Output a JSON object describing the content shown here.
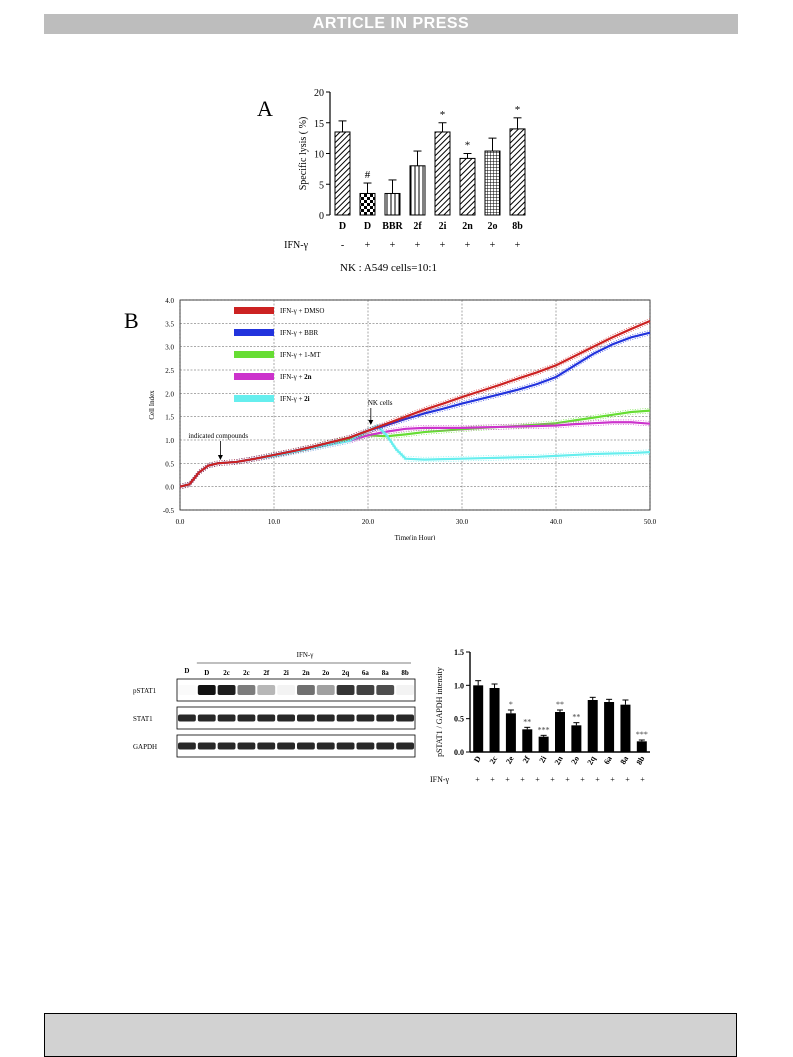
{
  "header": {
    "banner": "ARTICLE IN PRESS"
  },
  "panelA": {
    "letter": "A",
    "caption": "NK : A549 cells=10:1",
    "treatment_label": "IFN-γ",
    "signs": [
      "-",
      "+",
      "+",
      "+",
      "+",
      "+",
      "+",
      "+"
    ],
    "colors": {
      "bar_fill": "#ffffff",
      "stroke": "#000000",
      "dark_fill": "#222222"
    }
  },
  "panelB": {
    "letter": "B",
    "annotations": {
      "compounds": "indicated compounds",
      "nk": "NK cells"
    },
    "colors": {
      "dmso": "#cc2222",
      "bbr": "#2233dd",
      "mt": "#66dd33",
      "n2n": "#cc33cc",
      "n2i": "#66eeee"
    }
  },
  "panelC": {
    "blot": {
      "group_label": "IFN-γ",
      "lanes": [
        "D",
        "D",
        "2c",
        "2c",
        "2f",
        "2i",
        "2n",
        "2o",
        "2q",
        "6a",
        "8a",
        "8b"
      ],
      "rows": [
        "pSTAT1",
        "STAT1",
        "GAPDH"
      ],
      "pstat1_intensity": [
        0.02,
        1.0,
        0.95,
        0.55,
        0.3,
        0.05,
        0.6,
        0.4,
        0.85,
        0.8,
        0.75,
        0.05
      ]
    },
    "treatment_label": "IFN-γ",
    "signs": [
      "+",
      "+",
      "+",
      "+",
      "+",
      "+",
      "+",
      "+",
      "+",
      "+",
      "+",
      "+"
    ]
  },
  "chart_data": [
    {
      "type": "bar",
      "categories": [
        "D",
        "D",
        "BBR",
        "2f",
        "2i",
        "2n",
        "2o",
        "8b"
      ],
      "values": [
        13.5,
        3.5,
        3.5,
        8.0,
        13.5,
        9.2,
        10.4,
        14.0
      ],
      "errors": [
        1.8,
        1.7,
        2.2,
        2.4,
        1.5,
        0.8,
        2.1,
        1.8
      ],
      "patterns": [
        "diag",
        "check",
        "vert",
        "vert",
        "diag",
        "diag",
        "grid",
        "diag"
      ],
      "marks": [
        "",
        "#",
        "",
        "",
        "*",
        "*",
        "",
        "*"
      ],
      "ylabel": "Specific lysis ( %)",
      "ylim": [
        0,
        20
      ],
      "yticks": [
        0,
        5,
        10,
        15,
        20
      ]
    },
    {
      "type": "line",
      "xlabel": "Time(in Hour)",
      "ylabel": "Cell Index",
      "xlim": [
        0,
        50
      ],
      "ylim": [
        -0.5,
        4.0
      ],
      "xticks": [
        "0.0",
        "10.0",
        "20.0",
        "30.0",
        "40.0",
        "50.0"
      ],
      "yticks": [
        "-0.5",
        "0.0",
        "0.5",
        "1.0",
        "1.5",
        "2.0",
        "2.5",
        "3.0",
        "3.5",
        "4.0"
      ],
      "grid": true,
      "legend_position": "top-left",
      "series": [
        {
          "name": "IFN-γ + DMSO",
          "x": [
            0,
            1,
            2,
            3,
            4,
            6,
            8,
            10,
            12,
            14,
            16,
            18,
            20,
            22,
            24,
            26,
            28,
            30,
            32,
            34,
            36,
            38,
            40,
            42,
            44,
            46,
            48,
            50
          ],
          "y": [
            0.0,
            0.05,
            0.3,
            0.45,
            0.5,
            0.53,
            0.6,
            0.68,
            0.76,
            0.85,
            0.95,
            1.05,
            1.2,
            1.35,
            1.5,
            1.65,
            1.78,
            1.92,
            2.05,
            2.18,
            2.32,
            2.45,
            2.6,
            2.8,
            3.0,
            3.2,
            3.38,
            3.55
          ]
        },
        {
          "name": "IFN-γ + BBR",
          "x": [
            0,
            1,
            2,
            3,
            4,
            6,
            8,
            10,
            12,
            14,
            16,
            18,
            20,
            22,
            24,
            26,
            28,
            30,
            32,
            34,
            36,
            38,
            40,
            42,
            44,
            46,
            48,
            50
          ],
          "y": [
            0.0,
            0.05,
            0.3,
            0.45,
            0.5,
            0.53,
            0.6,
            0.68,
            0.76,
            0.85,
            0.95,
            1.05,
            1.2,
            1.32,
            1.45,
            1.57,
            1.67,
            1.78,
            1.88,
            1.98,
            2.08,
            2.2,
            2.35,
            2.6,
            2.85,
            3.05,
            3.2,
            3.3
          ]
        },
        {
          "name": "IFN-γ + 1-MT",
          "x": [
            0,
            1,
            2,
            3,
            4,
            6,
            8,
            10,
            12,
            14,
            16,
            18,
            20,
            22,
            24,
            26,
            28,
            30,
            32,
            34,
            36,
            38,
            40,
            42,
            44,
            46,
            48,
            50
          ],
          "y": [
            0.0,
            0.05,
            0.3,
            0.45,
            0.5,
            0.53,
            0.6,
            0.68,
            0.76,
            0.85,
            0.95,
            1.02,
            1.1,
            1.08,
            1.12,
            1.17,
            1.2,
            1.23,
            1.26,
            1.28,
            1.3,
            1.33,
            1.36,
            1.42,
            1.48,
            1.54,
            1.6,
            1.63
          ]
        },
        {
          "name": "IFN-γ + 2n",
          "x": [
            0,
            1,
            2,
            3,
            4,
            6,
            8,
            10,
            12,
            14,
            16,
            18,
            20,
            22,
            24,
            26,
            28,
            30,
            32,
            34,
            36,
            38,
            40,
            42,
            44,
            46,
            48,
            50
          ],
          "y": [
            0.0,
            0.05,
            0.3,
            0.45,
            0.5,
            0.53,
            0.6,
            0.66,
            0.74,
            0.82,
            0.9,
            0.98,
            1.1,
            1.18,
            1.24,
            1.26,
            1.26,
            1.26,
            1.27,
            1.28,
            1.29,
            1.3,
            1.31,
            1.34,
            1.36,
            1.38,
            1.38,
            1.35
          ]
        },
        {
          "name": "IFN-γ + 2i",
          "x": [
            0,
            1,
            2,
            3,
            4,
            6,
            8,
            10,
            12,
            14,
            16,
            18,
            20,
            21,
            22,
            23,
            24,
            26,
            28,
            30,
            32,
            34,
            36,
            38,
            40,
            42,
            44,
            46,
            48,
            50
          ],
          "y": [
            0.0,
            0.05,
            0.3,
            0.45,
            0.5,
            0.53,
            0.6,
            0.66,
            0.74,
            0.82,
            0.9,
            0.98,
            1.2,
            1.3,
            1.1,
            0.8,
            0.6,
            0.58,
            0.59,
            0.6,
            0.61,
            0.62,
            0.63,
            0.64,
            0.66,
            0.68,
            0.7,
            0.71,
            0.72,
            0.74
          ]
        }
      ],
      "legend_labels": [
        {
          "prefix": "IFN-γ + ",
          "emph": "DMSO",
          "bold": false
        },
        {
          "prefix": "IFN-γ + ",
          "emph": "BBR",
          "bold": false
        },
        {
          "prefix": "IFN-γ + ",
          "emph": "1-MT",
          "bold": false
        },
        {
          "prefix": "IFN-γ + ",
          "emph": "2n",
          "bold": true
        },
        {
          "prefix": "IFN-γ + ",
          "emph": "2i",
          "bold": true
        }
      ]
    },
    {
      "type": "bar",
      "categories": [
        "D",
        "2c",
        "2e",
        "2f",
        "2i",
        "2n",
        "2o",
        "2q",
        "6a",
        "8a",
        "8b"
      ],
      "values": [
        1.0,
        0.96,
        0.58,
        0.34,
        0.23,
        0.6,
        0.4,
        0.78,
        0.75,
        0.71,
        0.16
      ],
      "errors": [
        0.07,
        0.06,
        0.05,
        0.03,
        0.02,
        0.03,
        0.04,
        0.04,
        0.04,
        0.07,
        0.02
      ],
      "marks": [
        "",
        "",
        "*",
        "**",
        "***",
        "**",
        "**",
        "",
        "",
        "",
        "***"
      ],
      "ylabel": "pSTAT1 / GAPDH intensity",
      "ylim": [
        0,
        1.5
      ],
      "yticks": [
        "0.0",
        "0.5",
        "1.0",
        "1.5"
      ]
    }
  ]
}
